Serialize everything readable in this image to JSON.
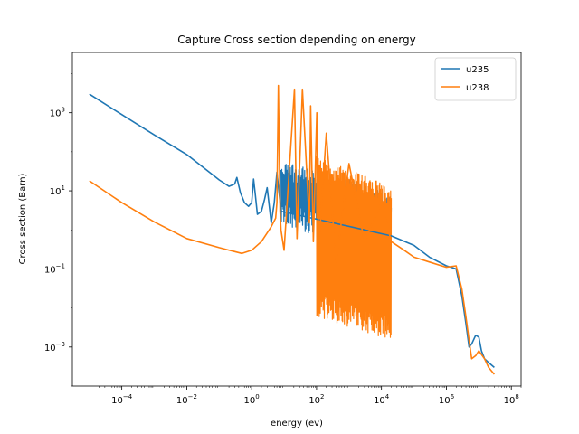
{
  "chart_data": {
    "type": "line",
    "title": "Capture Cross section depending on energy",
    "xlabel": "energy (ev)",
    "ylabel": "Cross section (Barn)",
    "xscale": "log",
    "yscale": "log",
    "xlim": [
      3e-06,
      200000000
    ],
    "ylim": [
      0.0001,
      35000
    ],
    "xticks": [
      {
        "value": 0.0001,
        "base": "10",
        "exp": "−4"
      },
      {
        "value": 0.01,
        "base": "10",
        "exp": "−2"
      },
      {
        "value": 1,
        "base": "10",
        "exp": "0"
      },
      {
        "value": 100,
        "base": "10",
        "exp": "2"
      },
      {
        "value": 10000,
        "base": "10",
        "exp": "4"
      },
      {
        "value": 1000000,
        "base": "10",
        "exp": "6"
      },
      {
        "value": 100000000,
        "base": "10",
        "exp": "8"
      }
    ],
    "yticks": [
      {
        "value": 0.001,
        "base": "10",
        "exp": "−3"
      },
      {
        "value": 0.1,
        "base": "10",
        "exp": "−1"
      },
      {
        "value": 10,
        "base": "10",
        "exp": "1"
      },
      {
        "value": 1000,
        "base": "10",
        "exp": "3"
      }
    ],
    "grid": false,
    "legend_position": "top-right",
    "series": [
      {
        "name": "u235",
        "color": "#1f77b4",
        "x": [
          1e-05,
          0.0001,
          0.001,
          0.01,
          0.05,
          0.1,
          0.2,
          0.3,
          0.35,
          0.45,
          0.6,
          0.8,
          1.0,
          1.15,
          1.3,
          1.5,
          2.0,
          2.5,
          3.0,
          4.0,
          5.0,
          6.0,
          8.0,
          20000,
          100000,
          300000,
          1000000,
          2000000,
          3000000,
          4000000,
          5000000,
          6000000,
          8000000,
          10000000,
          12000000,
          15000000,
          20000000,
          30000000
        ],
        "y": [
          3000,
          900,
          270,
          85,
          30,
          19,
          13,
          15,
          22,
          9,
          5,
          4,
          5,
          20,
          8,
          2.5,
          3.0,
          6,
          12,
          1.5,
          5,
          30,
          3,
          0.7,
          0.4,
          0.2,
          0.12,
          0.1,
          0.02,
          0.004,
          0.001,
          0.0012,
          0.002,
          0.0018,
          0.0008,
          0.0005,
          0.0004,
          0.0003
        ]
      },
      {
        "name": "u238",
        "color": "#ff7f0e",
        "x": [
          1e-05,
          0.0001,
          0.001,
          0.01,
          0.1,
          0.5,
          1.0,
          2.0,
          4.0,
          5.5,
          6.0,
          6.67,
          7.5,
          8.0,
          10.0,
          20.8,
          25,
          36.7,
          60,
          66,
          80,
          102,
          116,
          200,
          400,
          1000,
          3000,
          10000,
          20000,
          50000,
          100000,
          300000,
          1000000,
          2000000,
          3000000,
          4000000,
          5000000,
          6000000,
          8000000,
          10000000,
          15000000,
          20000000,
          30000000
        ],
        "y": [
          18,
          5,
          1.6,
          0.6,
          0.35,
          0.25,
          0.3,
          0.5,
          1.2,
          2.0,
          5.0,
          5000,
          3.0,
          1.0,
          0.3,
          4000,
          0.6,
          4000,
          1.5,
          1500,
          0.5,
          1000,
          0.3,
          300,
          0.15,
          50,
          0.5,
          5.0,
          0.5,
          0.3,
          0.2,
          0.15,
          0.11,
          0.12,
          0.03,
          0.006,
          0.0015,
          0.0005,
          0.0006,
          0.0008,
          0.0005,
          0.0003,
          0.0002
        ]
      }
    ],
    "dense_bands": [
      {
        "series": "u235",
        "x_start": 8,
        "x_end": 20000,
        "y_top": 60,
        "y_bottom": 0.3
      },
      {
        "series": "u238",
        "x_start": 100,
        "x_end": 20000,
        "y_top": 80,
        "y_bottom": 0.0015
      }
    ]
  }
}
